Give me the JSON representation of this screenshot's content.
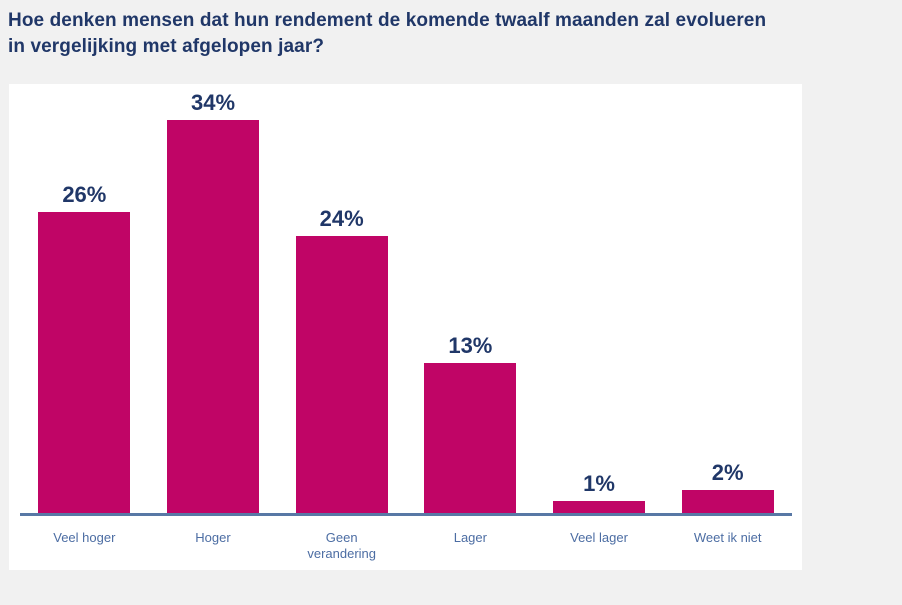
{
  "page": {
    "title": "Hoe denken mensen dat hun rendement de komende twaalf maanden zal evolueren\nin vergelijking met afgelopen jaar?",
    "background_color": "#F1F1F1",
    "panel_color": "#FFFFFF",
    "title_color": "#203768"
  },
  "chart_data": {
    "type": "bar",
    "title": "Hoe denken mensen dat hun rendement de komende twaalf maanden zal evolueren in vergelijking met afgelopen jaar?",
    "categories": [
      "Veel hoger",
      "Hoger",
      "Geen verandering",
      "Lager",
      "Veel lager",
      "Weet ik niet"
    ],
    "values": [
      26,
      34,
      24,
      13,
      1,
      2
    ],
    "value_labels": [
      "26%",
      "34%",
      "24%",
      "13%",
      "1%",
      "2%"
    ],
    "unit": "%",
    "xlabel": "",
    "ylabel": "",
    "gridlines": false,
    "legend": false,
    "bar_color": "#C00566",
    "value_label_color": "#203768",
    "category_label_color": "#4C6DA3",
    "axis_line_color": "#5878A5"
  }
}
